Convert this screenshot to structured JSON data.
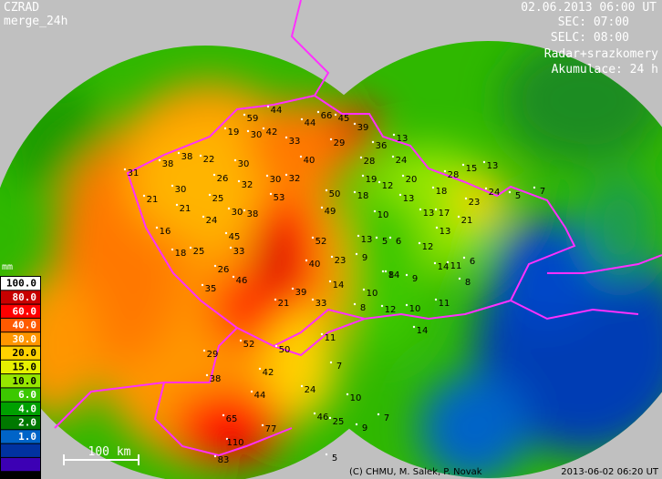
{
  "header": {
    "product": "CZRAD",
    "mode": "merge_24h",
    "datetime": "02.06.2013 06:00 UT",
    "sec": "SEC: 07:00",
    "selc": "SELC: 08:00",
    "source": "Radar+srazkomery",
    "accumulation": "Akumulace: 24 h"
  },
  "legend": {
    "unit": "mm",
    "items": [
      {
        "label": "100.0",
        "color": "#ffffff"
      },
      {
        "label": "80.0",
        "color": "#c80000"
      },
      {
        "label": "60.0",
        "color": "#ff0000"
      },
      {
        "label": "40.0",
        "color": "#ff5a00"
      },
      {
        "label": "30.0",
        "color": "#ff9600"
      },
      {
        "label": "20.0",
        "color": "#ffd200"
      },
      {
        "label": "15.0",
        "color": "#e6f000"
      },
      {
        "label": "10.0",
        "color": "#96e600"
      },
      {
        "label": "6.0",
        "color": "#3cc800"
      },
      {
        "label": "4.0",
        "color": "#00a000"
      },
      {
        "label": "2.0",
        "color": "#007800"
      },
      {
        "label": "1.0",
        "color": "#0064c8"
      }
    ]
  },
  "scale": "100 km",
  "credits": "(C) CHMU, M. Salek, P. Novak",
  "timestamp": "2013-06-02 06:20 UT",
  "stations": [
    44,
    59,
    44,
    66,
    45,
    39,
    19,
    30,
    42,
    33,
    29,
    36,
    13,
    38,
    38,
    22,
    30,
    40,
    28,
    24,
    28,
    15,
    13,
    31,
    26,
    32,
    30,
    32,
    19,
    12,
    20,
    30,
    21,
    25,
    53,
    50,
    18,
    18,
    24,
    5,
    7,
    21,
    30,
    38,
    49,
    10,
    13,
    13,
    17,
    23,
    24,
    16,
    45,
    52,
    13,
    5,
    6,
    12,
    21,
    13,
    18,
    25,
    33,
    40,
    23,
    9,
    14,
    11,
    6,
    26,
    46,
    35,
    14,
    10,
    8,
    14,
    9,
    8,
    39,
    33,
    12,
    10,
    11,
    8,
    21,
    11,
    14,
    29,
    52,
    50,
    38,
    42,
    44,
    24,
    10,
    46,
    25,
    9,
    7,
    65,
    77,
    110,
    83,
    5,
    7
  ]
}
